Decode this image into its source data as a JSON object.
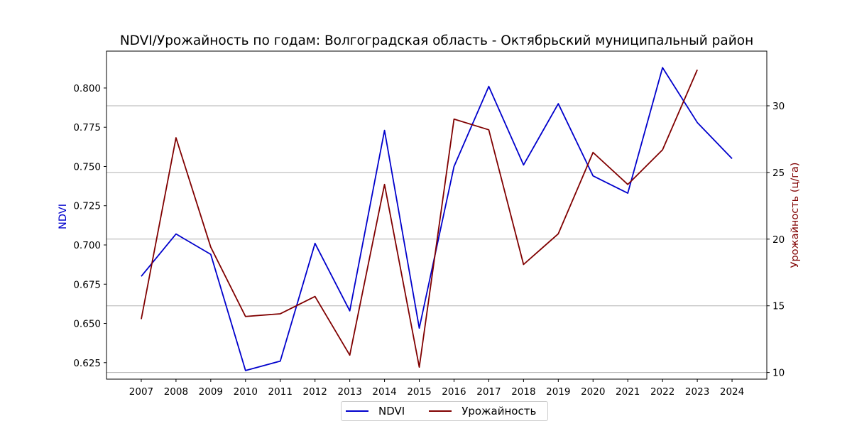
{
  "chart_data": {
    "type": "line",
    "title": "NDVI/Урожайность по годам: Волгоградская область - Октябрьский муниципальный район",
    "xlabel": "",
    "categories": [
      "2007",
      "2008",
      "2009",
      "2010",
      "2011",
      "2012",
      "2013",
      "2014",
      "2015",
      "2016",
      "2017",
      "2018",
      "2019",
      "2020",
      "2021",
      "2022",
      "2023",
      "2024"
    ],
    "left_axis": {
      "label": "NDVI",
      "color": "#0000cc",
      "ylim": [
        0.6145,
        0.8235
      ],
      "ticks": [
        "0.625",
        "0.650",
        "0.675",
        "0.700",
        "0.725",
        "0.750",
        "0.775",
        "0.800"
      ]
    },
    "right_axis": {
      "label": "Урожайность (ц/га)",
      "color": "#800000",
      "ylim": [
        9.5,
        34.1
      ],
      "ticks": [
        "10",
        "15",
        "20",
        "25",
        "30"
      ]
    },
    "grid": "horizontal lines at right-axis ticks",
    "legend_position": "bottom-center",
    "series": [
      {
        "name": "NDVI",
        "axis": "left",
        "color": "#0000cc",
        "values": [
          0.68,
          0.707,
          0.694,
          0.62,
          0.626,
          0.701,
          0.658,
          0.773,
          0.647,
          0.75,
          0.801,
          0.751,
          0.79,
          0.744,
          0.733,
          0.813,
          0.778,
          0.755
        ]
      },
      {
        "name": "Урожайность",
        "axis": "right",
        "color": "#800000",
        "values": [
          14.0,
          27.6,
          19.4,
          14.2,
          14.4,
          15.7,
          11.3,
          24.1,
          10.4,
          29.0,
          28.2,
          18.1,
          20.4,
          26.5,
          24.1,
          26.7,
          32.7,
          null
        ]
      }
    ]
  }
}
